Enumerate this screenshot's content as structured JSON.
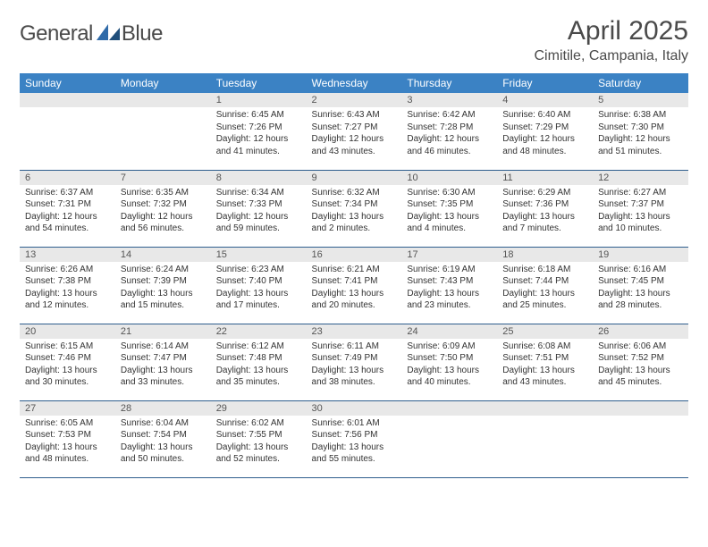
{
  "logo": {
    "general": "General",
    "blue": "Blue"
  },
  "title": "April 2025",
  "location": "Cimitile, Campania, Italy",
  "colors": {
    "header_bg": "#3b82c4",
    "header_text": "#ffffff",
    "daynum_bg": "#e8e8e8",
    "border": "#2f5e8e",
    "text": "#333333",
    "title_text": "#4a4a4a",
    "logo_blue": "#2f6aa8"
  },
  "typography": {
    "title_fontsize": 30,
    "location_fontsize": 16,
    "weekday_fontsize": 12,
    "daynum_fontsize": 11,
    "body_fontsize": 10
  },
  "weekdays": [
    "Sunday",
    "Monday",
    "Tuesday",
    "Wednesday",
    "Thursday",
    "Friday",
    "Saturday"
  ],
  "weeks": [
    [
      null,
      null,
      {
        "n": "1",
        "sr": "Sunrise: 6:45 AM",
        "ss": "Sunset: 7:26 PM",
        "dl": "Daylight: 12 hours and 41 minutes."
      },
      {
        "n": "2",
        "sr": "Sunrise: 6:43 AM",
        "ss": "Sunset: 7:27 PM",
        "dl": "Daylight: 12 hours and 43 minutes."
      },
      {
        "n": "3",
        "sr": "Sunrise: 6:42 AM",
        "ss": "Sunset: 7:28 PM",
        "dl": "Daylight: 12 hours and 46 minutes."
      },
      {
        "n": "4",
        "sr": "Sunrise: 6:40 AM",
        "ss": "Sunset: 7:29 PM",
        "dl": "Daylight: 12 hours and 48 minutes."
      },
      {
        "n": "5",
        "sr": "Sunrise: 6:38 AM",
        "ss": "Sunset: 7:30 PM",
        "dl": "Daylight: 12 hours and 51 minutes."
      }
    ],
    [
      {
        "n": "6",
        "sr": "Sunrise: 6:37 AM",
        "ss": "Sunset: 7:31 PM",
        "dl": "Daylight: 12 hours and 54 minutes."
      },
      {
        "n": "7",
        "sr": "Sunrise: 6:35 AM",
        "ss": "Sunset: 7:32 PM",
        "dl": "Daylight: 12 hours and 56 minutes."
      },
      {
        "n": "8",
        "sr": "Sunrise: 6:34 AM",
        "ss": "Sunset: 7:33 PM",
        "dl": "Daylight: 12 hours and 59 minutes."
      },
      {
        "n": "9",
        "sr": "Sunrise: 6:32 AM",
        "ss": "Sunset: 7:34 PM",
        "dl": "Daylight: 13 hours and 2 minutes."
      },
      {
        "n": "10",
        "sr": "Sunrise: 6:30 AM",
        "ss": "Sunset: 7:35 PM",
        "dl": "Daylight: 13 hours and 4 minutes."
      },
      {
        "n": "11",
        "sr": "Sunrise: 6:29 AM",
        "ss": "Sunset: 7:36 PM",
        "dl": "Daylight: 13 hours and 7 minutes."
      },
      {
        "n": "12",
        "sr": "Sunrise: 6:27 AM",
        "ss": "Sunset: 7:37 PM",
        "dl": "Daylight: 13 hours and 10 minutes."
      }
    ],
    [
      {
        "n": "13",
        "sr": "Sunrise: 6:26 AM",
        "ss": "Sunset: 7:38 PM",
        "dl": "Daylight: 13 hours and 12 minutes."
      },
      {
        "n": "14",
        "sr": "Sunrise: 6:24 AM",
        "ss": "Sunset: 7:39 PM",
        "dl": "Daylight: 13 hours and 15 minutes."
      },
      {
        "n": "15",
        "sr": "Sunrise: 6:23 AM",
        "ss": "Sunset: 7:40 PM",
        "dl": "Daylight: 13 hours and 17 minutes."
      },
      {
        "n": "16",
        "sr": "Sunrise: 6:21 AM",
        "ss": "Sunset: 7:41 PM",
        "dl": "Daylight: 13 hours and 20 minutes."
      },
      {
        "n": "17",
        "sr": "Sunrise: 6:19 AM",
        "ss": "Sunset: 7:43 PM",
        "dl": "Daylight: 13 hours and 23 minutes."
      },
      {
        "n": "18",
        "sr": "Sunrise: 6:18 AM",
        "ss": "Sunset: 7:44 PM",
        "dl": "Daylight: 13 hours and 25 minutes."
      },
      {
        "n": "19",
        "sr": "Sunrise: 6:16 AM",
        "ss": "Sunset: 7:45 PM",
        "dl": "Daylight: 13 hours and 28 minutes."
      }
    ],
    [
      {
        "n": "20",
        "sr": "Sunrise: 6:15 AM",
        "ss": "Sunset: 7:46 PM",
        "dl": "Daylight: 13 hours and 30 minutes."
      },
      {
        "n": "21",
        "sr": "Sunrise: 6:14 AM",
        "ss": "Sunset: 7:47 PM",
        "dl": "Daylight: 13 hours and 33 minutes."
      },
      {
        "n": "22",
        "sr": "Sunrise: 6:12 AM",
        "ss": "Sunset: 7:48 PM",
        "dl": "Daylight: 13 hours and 35 minutes."
      },
      {
        "n": "23",
        "sr": "Sunrise: 6:11 AM",
        "ss": "Sunset: 7:49 PM",
        "dl": "Daylight: 13 hours and 38 minutes."
      },
      {
        "n": "24",
        "sr": "Sunrise: 6:09 AM",
        "ss": "Sunset: 7:50 PM",
        "dl": "Daylight: 13 hours and 40 minutes."
      },
      {
        "n": "25",
        "sr": "Sunrise: 6:08 AM",
        "ss": "Sunset: 7:51 PM",
        "dl": "Daylight: 13 hours and 43 minutes."
      },
      {
        "n": "26",
        "sr": "Sunrise: 6:06 AM",
        "ss": "Sunset: 7:52 PM",
        "dl": "Daylight: 13 hours and 45 minutes."
      }
    ],
    [
      {
        "n": "27",
        "sr": "Sunrise: 6:05 AM",
        "ss": "Sunset: 7:53 PM",
        "dl": "Daylight: 13 hours and 48 minutes."
      },
      {
        "n": "28",
        "sr": "Sunrise: 6:04 AM",
        "ss": "Sunset: 7:54 PM",
        "dl": "Daylight: 13 hours and 50 minutes."
      },
      {
        "n": "29",
        "sr": "Sunrise: 6:02 AM",
        "ss": "Sunset: 7:55 PM",
        "dl": "Daylight: 13 hours and 52 minutes."
      },
      {
        "n": "30",
        "sr": "Sunrise: 6:01 AM",
        "ss": "Sunset: 7:56 PM",
        "dl": "Daylight: 13 hours and 55 minutes."
      },
      null,
      null,
      null
    ]
  ]
}
